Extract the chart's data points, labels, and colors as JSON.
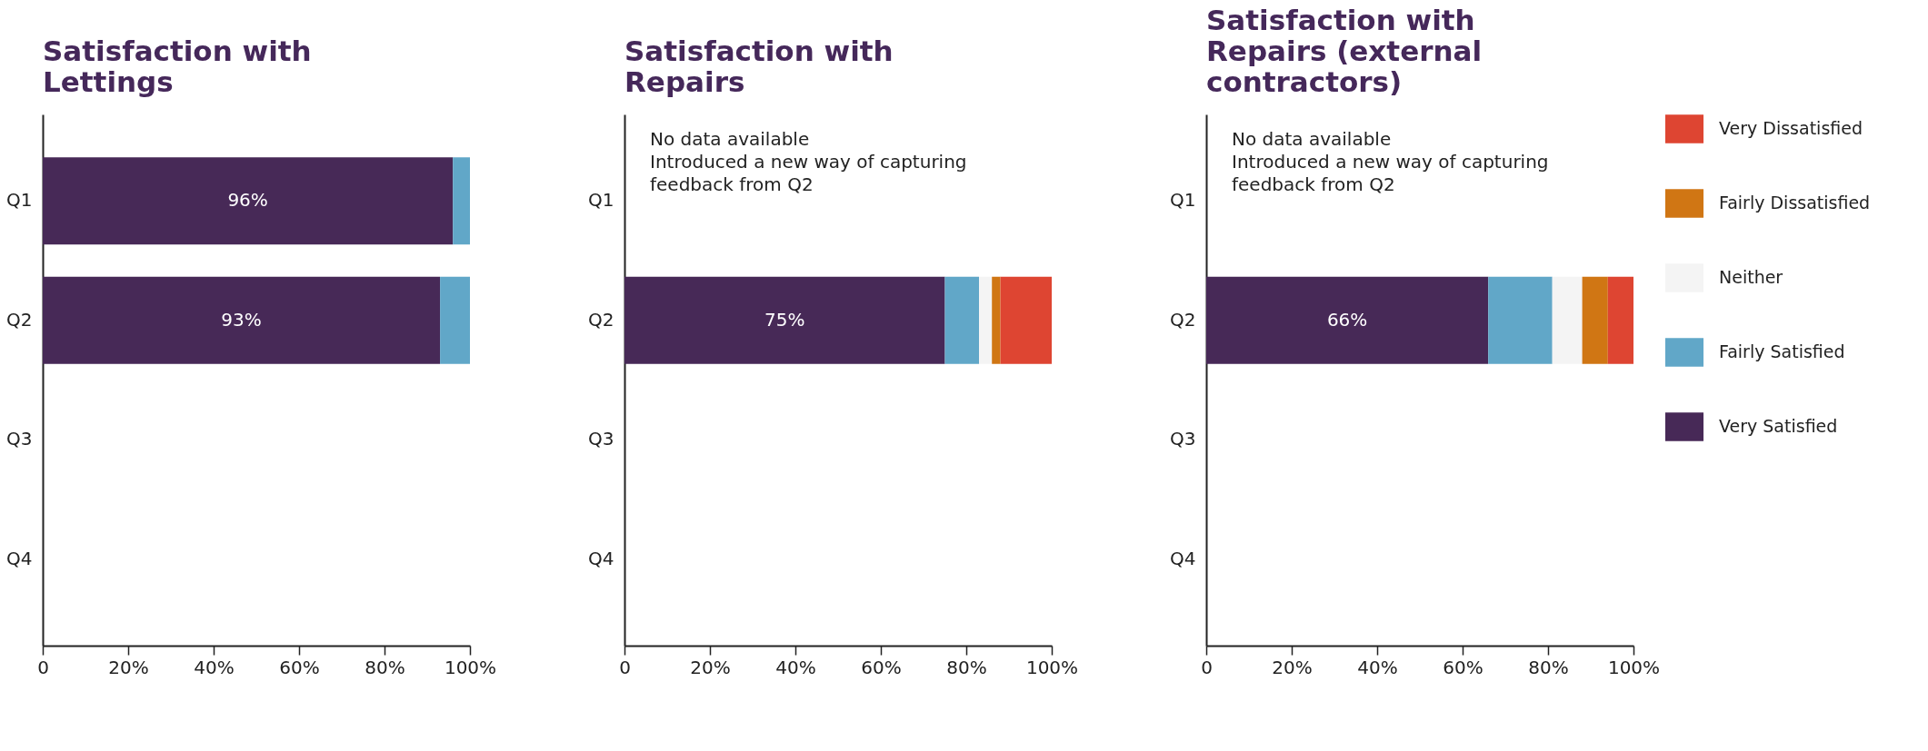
{
  "chart_data": [
    {
      "type": "bar",
      "title": "Satisfaction with Lettings",
      "orientation": "horizontal",
      "stacked": true,
      "categories": [
        "Q1",
        "Q2",
        "Q3",
        "Q4"
      ],
      "xlim": [
        0,
        100
      ],
      "xticks": [
        {
          "value": 0,
          "label": "0"
        },
        {
          "value": 20,
          "label": "20%"
        },
        {
          "value": 40,
          "label": "40%"
        },
        {
          "value": 60,
          "label": "60%"
        },
        {
          "value": 80,
          "label": "80%"
        },
        {
          "value": 100,
          "label": "100%"
        }
      ],
      "legend": false,
      "series": [
        {
          "color": "#472957",
          "values": [
            96,
            93,
            null,
            null
          ],
          "value_labels": [
            "96%",
            "93%",
            null,
            null
          ]
        },
        {
          "color": "#61a7c8",
          "values": [
            4,
            7,
            null,
            null
          ]
        }
      ]
    },
    {
      "type": "bar",
      "title": "Satisfaction with Repairs",
      "orientation": "horizontal",
      "stacked": true,
      "categories": [
        "Q1",
        "Q2",
        "Q3",
        "Q4"
      ],
      "xlim": [
        0,
        100
      ],
      "xticks": [
        {
          "value": 0,
          "label": "0"
        },
        {
          "value": 20,
          "label": "20%"
        },
        {
          "value": 40,
          "label": "40%"
        },
        {
          "value": 60,
          "label": "60%"
        },
        {
          "value": 80,
          "label": "80%"
        },
        {
          "value": 100,
          "label": "100%"
        }
      ],
      "legend": false,
      "annotations": [
        "No data available\nIntroduced a new way of capturing feedback from Q2"
      ],
      "series": [
        {
          "color": "#472957",
          "values": [
            null,
            75,
            null,
            null
          ],
          "value_labels": [
            null,
            "75%",
            null,
            null
          ]
        },
        {
          "color": "#61a7c8",
          "values": [
            null,
            8,
            null,
            null
          ]
        },
        {
          "color": "#f4f4f4",
          "values": [
            null,
            3,
            null,
            null
          ]
        },
        {
          "color": "#d07614",
          "values": [
            null,
            2,
            null,
            null
          ]
        },
        {
          "color": "#de4532",
          "values": [
            null,
            12,
            null,
            null
          ]
        }
      ]
    },
    {
      "type": "bar",
      "title": "Satisfaction with Repairs (external contractors)",
      "orientation": "horizontal",
      "stacked": true,
      "categories": [
        "Q1",
        "Q2",
        "Q3",
        "Q4"
      ],
      "xlim": [
        0,
        100
      ],
      "xticks": [
        {
          "value": 0,
          "label": "0"
        },
        {
          "value": 20,
          "label": "20%"
        },
        {
          "value": 40,
          "label": "40%"
        },
        {
          "value": 60,
          "label": "60%"
        },
        {
          "value": 80,
          "label": "80%"
        },
        {
          "value": 100,
          "label": "100%"
        }
      ],
      "legend": "right",
      "annotations": [
        "No data available\nIntroduced a new way of capturing feedback from Q2"
      ],
      "series": [
        {
          "name": "Very Satisfied",
          "color": "#472957",
          "values": [
            null,
            66,
            null,
            null
          ],
          "value_labels": [
            null,
            "66%",
            null,
            null
          ]
        },
        {
          "name": "Fairly Satisfied",
          "color": "#61a7c8",
          "values": [
            null,
            15,
            null,
            null
          ]
        },
        {
          "name": "Neither",
          "color": "#f4f4f4",
          "values": [
            null,
            7,
            null,
            null
          ]
        },
        {
          "name": "Fairly Dissatisfied",
          "color": "#d07614",
          "values": [
            null,
            6,
            null,
            null
          ]
        },
        {
          "name": "Very Dissatisfied",
          "color": "#de4532",
          "values": [
            null,
            6,
            null,
            null
          ]
        }
      ]
    }
  ]
}
